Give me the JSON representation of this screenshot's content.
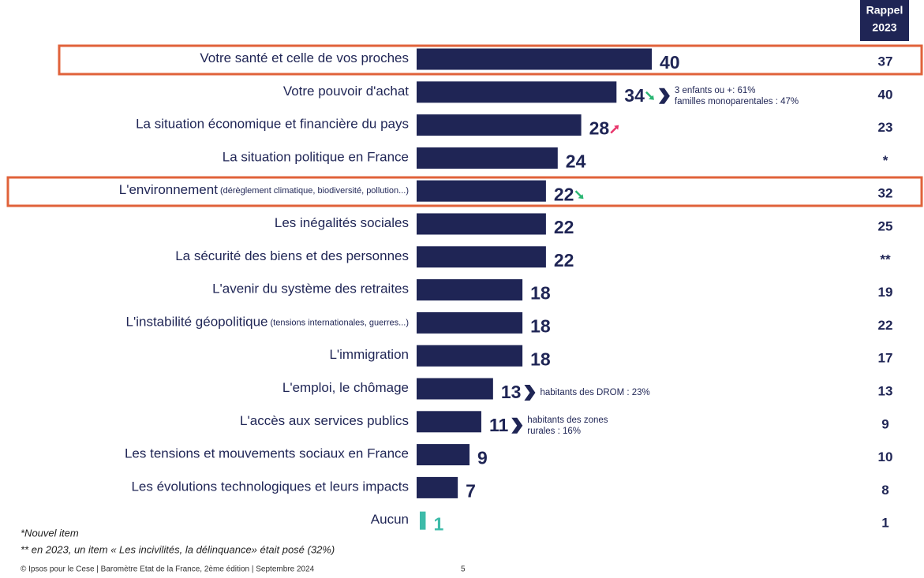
{
  "chart_data": {
    "type": "bar",
    "orientation": "horizontal",
    "categories": [
      "Votre santé et celle de vos proches",
      "Votre pouvoir d'achat",
      "La situation économique et financière du pays",
      "La situation politique en France",
      "L'environnement",
      "Les inégalités sociales",
      "La sécurité des biens et des personnes",
      "L'avenir du système des retraites",
      "L'instabilité géopolitique",
      "L'immigration",
      "L'emploi, le chômage",
      "L'accès aux services publics",
      "Les tensions et mouvements sociaux en France",
      "Les évolutions technologiques et leurs impacts",
      "Aucun"
    ],
    "sub_labels": [
      null,
      null,
      null,
      null,
      "(dérèglement climatique, biodiversité, pollution...)",
      null,
      null,
      null,
      "(tensions internationales, guerres...)",
      null,
      null,
      null,
      null,
      null,
      null
    ],
    "values": [
      40,
      34,
      28,
      24,
      22,
      22,
      22,
      18,
      18,
      18,
      13,
      11,
      9,
      7,
      1
    ],
    "colors": [
      "#1f2555",
      "#1f2555",
      "#1f2555",
      "#1f2555",
      "#1f2555",
      "#1f2555",
      "#1f2555",
      "#1f2555",
      "#1f2555",
      "#1f2555",
      "#1f2555",
      "#1f2555",
      "#1f2555",
      "#1f2555",
      "#3dbba9"
    ],
    "trends": [
      null,
      "down",
      "up",
      null,
      "down",
      null,
      null,
      null,
      null,
      null,
      null,
      null,
      null,
      null,
      null
    ],
    "callouts": [
      null,
      [
        "3 enfants ou +: 61%",
        "familles monoparentales : 47%"
      ],
      null,
      null,
      null,
      null,
      null,
      null,
      null,
      null,
      [
        "habitants des DROM : 23%"
      ],
      [
        "habitants des zones",
        "rurales : 16%"
      ],
      null,
      null,
      null
    ],
    "rappel_header": [
      "Rappel",
      "2023"
    ],
    "rappel_2023": [
      "37",
      "40",
      "23",
      "*",
      "32",
      "25",
      "**",
      "19",
      "22",
      "17",
      "13",
      "9",
      "10",
      "8",
      "1"
    ],
    "footnotes": [
      "*Nouvel item",
      "** en 2023, un item « Les incivilités, la délinquance» était posé (32%)"
    ],
    "source": "© Ipsos pour le Cese | Baromètre Etat de la France, 2ème édition | Septembre 2024",
    "page_number": "5"
  }
}
